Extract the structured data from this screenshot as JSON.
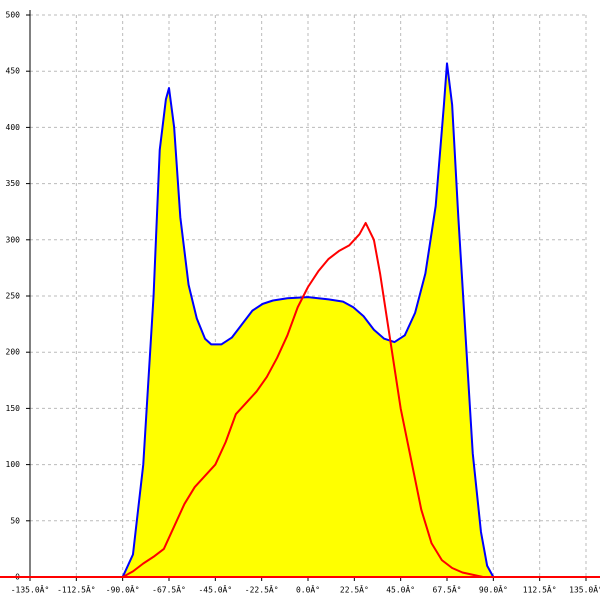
{
  "chart_data": {
    "type": "area",
    "xlim": [
      -135,
      135
    ],
    "xticks": [
      {
        "value": -135,
        "label": "-135.0Â°"
      },
      {
        "value": -112.5,
        "label": "-112.5Â°"
      },
      {
        "value": -90,
        "label": "-90.0Â°"
      },
      {
        "value": -67.5,
        "label": "-67.5Â°"
      },
      {
        "value": -45,
        "label": "-45.0Â°"
      },
      {
        "value": -22.5,
        "label": "-22.5Â°"
      },
      {
        "value": 0,
        "label": "0.0Â°"
      },
      {
        "value": 22.5,
        "label": "22.5Â°"
      },
      {
        "value": 45,
        "label": "45.0Â°"
      },
      {
        "value": 67.5,
        "label": "67.5Â°"
      },
      {
        "value": 90,
        "label": "90.0Â°"
      },
      {
        "value": 112.5,
        "label": "112.5Â°"
      },
      {
        "value": 135,
        "label": "135.0Â°"
      }
    ],
    "ylim": [
      0,
      500
    ],
    "yticks": [
      0,
      50,
      100,
      150,
      200,
      250,
      300,
      350,
      400,
      450,
      500
    ],
    "grid": true,
    "series": [
      {
        "color": "#0000ff",
        "fill": "#ffff00",
        "x": [
          -90,
          -85,
          -80,
          -75,
          -72,
          -69,
          -67.5,
          -65,
          -62,
          -58,
          -54,
          -50,
          -47,
          -42,
          -37,
          -32,
          -27,
          -22,
          -17,
          -10,
          0,
          10,
          17,
          22,
          27,
          32,
          37,
          42,
          47,
          52,
          57,
          62,
          66,
          67.5,
          70,
          73,
          77,
          80,
          84,
          87,
          90
        ],
        "values": [
          0,
          20,
          100,
          250,
          380,
          425,
          435,
          400,
          320,
          260,
          230,
          212,
          207,
          207,
          213,
          225,
          237,
          243,
          246,
          248,
          249,
          247,
          245,
          240,
          232,
          220,
          212,
          209,
          215,
          235,
          270,
          330,
          420,
          457,
          420,
          320,
          200,
          110,
          40,
          10,
          0
        ]
      },
      {
        "color": "#ff0000",
        "x": [
          -90,
          -85,
          -80,
          -75,
          -70,
          -65,
          -60,
          -55,
          -50,
          -45,
          -40,
          -35,
          -30,
          -25,
          -20,
          -15,
          -10,
          -5,
          0,
          5,
          10,
          15,
          20,
          25,
          28,
          32,
          35,
          40,
          45,
          50,
          55,
          60,
          65,
          70,
          75,
          80,
          85,
          90
        ],
        "values": [
          0,
          5,
          12,
          18,
          25,
          45,
          65,
          80,
          90,
          100,
          120,
          145,
          155,
          165,
          178,
          195,
          215,
          240,
          258,
          272,
          283,
          290,
          295,
          305,
          315,
          300,
          270,
          210,
          150,
          105,
          60,
          30,
          15,
          8,
          4,
          2,
          0,
          0
        ]
      }
    ]
  }
}
